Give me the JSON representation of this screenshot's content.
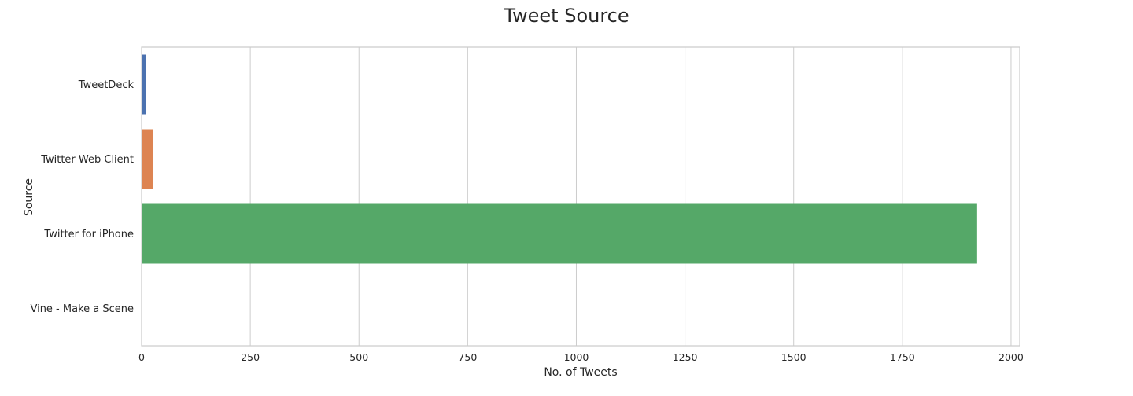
{
  "chart_data": {
    "type": "bar",
    "orientation": "horizontal",
    "title": "Tweet Source",
    "xlabel": "No. of Tweets",
    "ylabel": "Source",
    "categories": [
      "TweetDeck",
      "Twitter Web Client",
      "Twitter for iPhone",
      "Vine - Make a Scene"
    ],
    "values": [
      10,
      27,
      1922,
      1
    ],
    "colors": [
      "#4c72b0",
      "#dd8452",
      "#55a868",
      "#c44e52"
    ],
    "xlim": [
      0,
      2020
    ],
    "xticks": [
      0,
      250,
      500,
      750,
      1000,
      1250,
      1500,
      1750,
      2000
    ],
    "grid": true,
    "legend": "none"
  }
}
